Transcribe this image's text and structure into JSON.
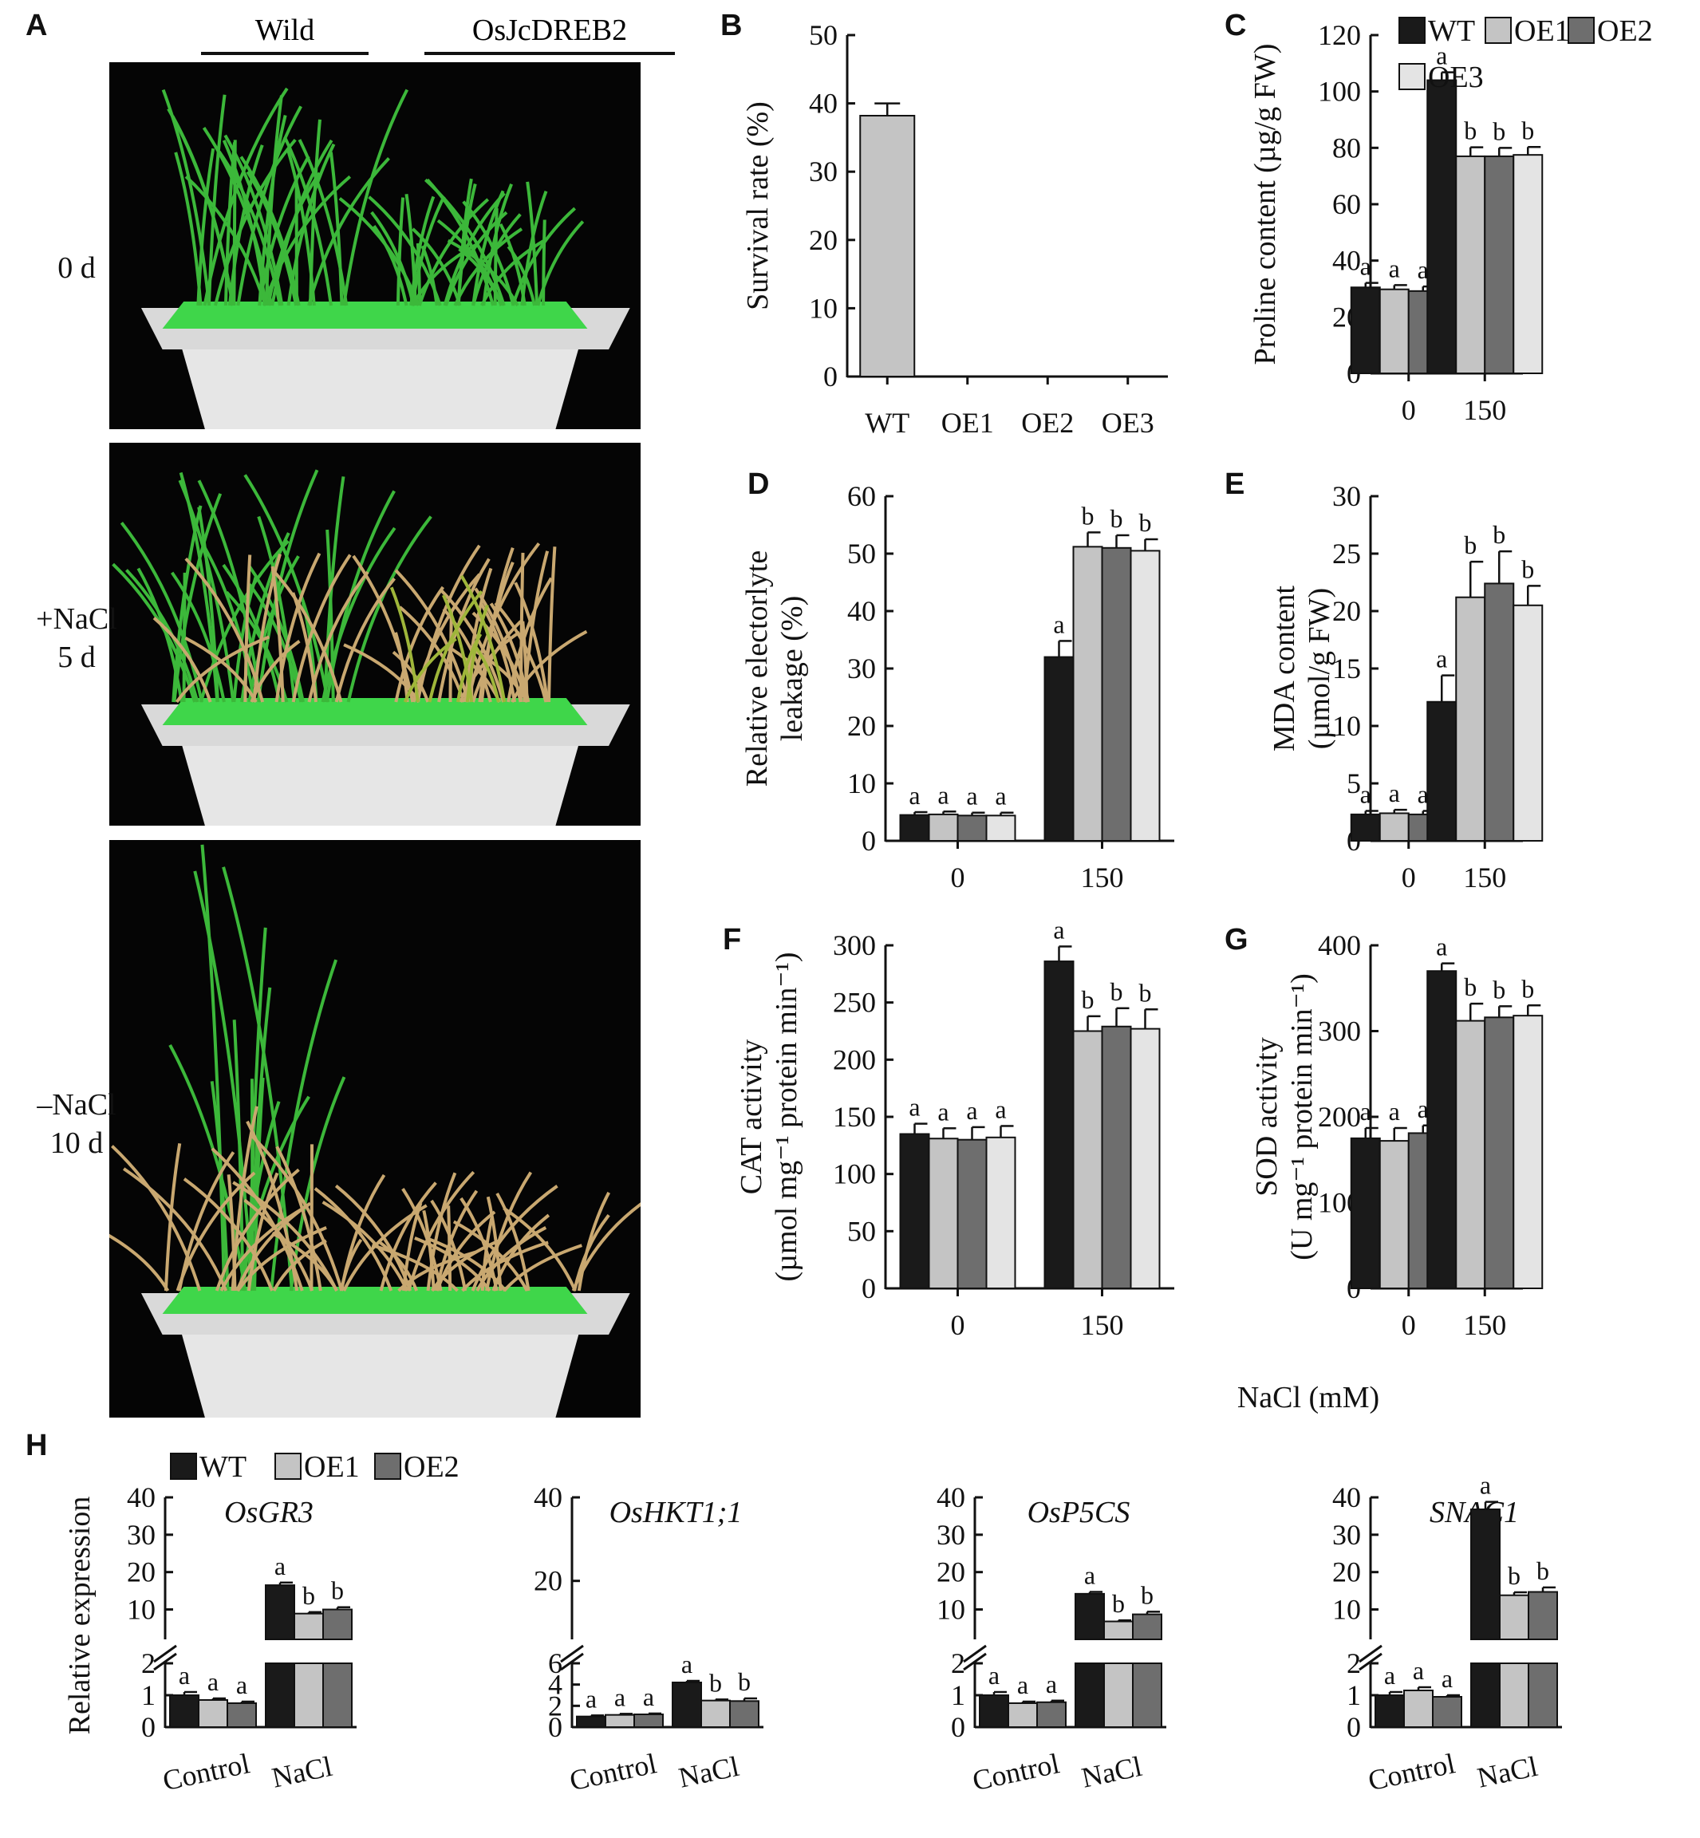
{
  "colors": {
    "WT": "#1a1a1a",
    "OE1": "#c4c4c4",
    "OE2": "#6e6e6e",
    "OE3": "#e4e4e4",
    "survival": "#c4c4c4",
    "pot": "#e6e6e6",
    "tray": "#3fd64a",
    "leaf": "#3cb83a",
    "dry": "#c9a870"
  },
  "panel_A": {
    "label": "A",
    "header_left": "Wild",
    "header_right": "OsJcDREB2",
    "rows": [
      {
        "line1": "0 d",
        "line2": ""
      },
      {
        "line1": "+NaCl",
        "line2": "5 d"
      },
      {
        "line1": "–NaCl",
        "line2": "10 d"
      }
    ]
  },
  "legend_main": [
    "WT",
    "OE1",
    "OE2",
    "OE3"
  ],
  "legend_H": [
    "WT",
    "OE1",
    "OE2"
  ],
  "shared_xlabel": "NaCl (mM)",
  "chart_data": [
    {
      "id": "B",
      "label": "B",
      "type": "bar",
      "categories": [
        "WT",
        "OE1",
        "OE2",
        "OE3"
      ],
      "values": [
        38.2,
        0,
        0,
        0
      ],
      "errors": [
        1.8,
        0,
        0,
        0
      ],
      "ylabel": "Survival rate (%)",
      "ylim": [
        0,
        50
      ],
      "yticks": [
        0,
        10,
        20,
        30,
        40,
        50
      ]
    },
    {
      "id": "C",
      "label": "C",
      "type": "bar",
      "categories": [
        "0",
        "150"
      ],
      "series": [
        {
          "name": "WT",
          "values": [
            30.5,
            104
          ],
          "errors": [
            1.6,
            2.8
          ],
          "letters": [
            "a",
            "a"
          ]
        },
        {
          "name": "OE1",
          "values": [
            29.8,
            77
          ],
          "errors": [
            1.5,
            3.2
          ],
          "letters": [
            "a",
            "b"
          ]
        },
        {
          "name": "OE2",
          "values": [
            29.2,
            77
          ],
          "errors": [
            1.6,
            3.0
          ],
          "letters": [
            "a",
            "b"
          ]
        },
        {
          "name": "OE3",
          "values": [
            29.8,
            77.5
          ],
          "errors": [
            1.4,
            2.8
          ],
          "letters": [
            "a",
            "b"
          ]
        }
      ],
      "ylabel": "Proline content (µg/g FW)",
      "ylim": [
        0,
        120
      ],
      "yticks": [
        0,
        20,
        40,
        60,
        80,
        100,
        120
      ],
      "legend": "top-right"
    },
    {
      "id": "D",
      "label": "D",
      "type": "bar",
      "categories": [
        "0",
        "150"
      ],
      "series": [
        {
          "name": "WT",
          "values": [
            4.5,
            32
          ],
          "errors": [
            0.5,
            2.8
          ],
          "letters": [
            "a",
            "a"
          ]
        },
        {
          "name": "OE1",
          "values": [
            4.6,
            51.2
          ],
          "errors": [
            0.5,
            2.5
          ],
          "letters": [
            "a",
            "b"
          ]
        },
        {
          "name": "OE2",
          "values": [
            4.4,
            51
          ],
          "errors": [
            0.5,
            2.2
          ],
          "letters": [
            "a",
            "b"
          ]
        },
        {
          "name": "OE3",
          "values": [
            4.4,
            50.5
          ],
          "errors": [
            0.5,
            2.0
          ],
          "letters": [
            "a",
            "b"
          ]
        }
      ],
      "ylabel": "Relative electorlyte|leakage (%)",
      "ylim": [
        0,
        60
      ],
      "yticks": [
        0,
        10,
        20,
        30,
        40,
        50,
        60
      ]
    },
    {
      "id": "E",
      "label": "E",
      "type": "bar",
      "categories": [
        "0",
        "150"
      ],
      "series": [
        {
          "name": "WT",
          "values": [
            2.3,
            12.1
          ],
          "errors": [
            0.3,
            2.3
          ],
          "letters": [
            "a",
            "a"
          ]
        },
        {
          "name": "OE1",
          "values": [
            2.4,
            21.2
          ],
          "errors": [
            0.3,
            3.1
          ],
          "letters": [
            "a",
            "b"
          ]
        },
        {
          "name": "OE2",
          "values": [
            2.3,
            22.4
          ],
          "errors": [
            0.3,
            2.8
          ],
          "letters": [
            "a",
            "b"
          ]
        },
        {
          "name": "OE3",
          "values": [
            2.4,
            20.5
          ],
          "errors": [
            0.3,
            1.7
          ],
          "letters": [
            "a",
            "b"
          ]
        }
      ],
      "ylabel": "MDA content|(µmol/g FW)",
      "ylim": [
        0,
        30
      ],
      "yticks": [
        0,
        5,
        10,
        15,
        20,
        25,
        30
      ]
    },
    {
      "id": "F",
      "label": "F",
      "type": "bar",
      "categories": [
        "0",
        "150"
      ],
      "series": [
        {
          "name": "WT",
          "values": [
            135,
            286
          ],
          "errors": [
            9,
            13
          ],
          "letters": [
            "a",
            "a"
          ]
        },
        {
          "name": "OE1",
          "values": [
            131,
            225
          ],
          "errors": [
            9,
            13
          ],
          "letters": [
            "a",
            "b"
          ]
        },
        {
          "name": "OE2",
          "values": [
            130,
            229
          ],
          "errors": [
            11,
            16
          ],
          "letters": [
            "a",
            "b"
          ]
        },
        {
          "name": "OE3",
          "values": [
            132,
            227
          ],
          "errors": [
            10,
            17
          ],
          "letters": [
            "a",
            "b"
          ]
        }
      ],
      "ylabel": "CAT activity|(µmol mg⁻¹ protein min⁻¹)",
      "ylim": [
        0,
        300
      ],
      "yticks": [
        0,
        50,
        100,
        150,
        200,
        250,
        300
      ]
    },
    {
      "id": "G",
      "label": "G",
      "type": "bar",
      "categories": [
        "0",
        "150"
      ],
      "series": [
        {
          "name": "WT",
          "values": [
            175,
            370
          ],
          "errors": [
            12,
            9
          ],
          "letters": [
            "a",
            "a"
          ]
        },
        {
          "name": "OE1",
          "values": [
            172,
            312
          ],
          "errors": [
            15,
            20
          ],
          "letters": [
            "a",
            "b"
          ]
        },
        {
          "name": "OE2",
          "values": [
            181,
            316
          ],
          "errors": [
            9,
            13
          ],
          "letters": [
            "a",
            "b"
          ]
        },
        {
          "name": "OE3",
          "values": [
            174,
            318
          ],
          "errors": [
            12,
            12
          ],
          "letters": [
            "a",
            "b"
          ]
        }
      ],
      "ylabel": "SOD activity|(U mg⁻¹ protein min⁻¹)",
      "ylim": [
        0,
        400
      ],
      "yticks": [
        0,
        100,
        200,
        300,
        400
      ]
    },
    {
      "id": "H1",
      "label": "H",
      "type": "bar",
      "title": "OsGR3",
      "categories": [
        "Control",
        "NaCl"
      ],
      "series": [
        {
          "name": "WT",
          "values": [
            1.0,
            16.5
          ],
          "errors": [
            0.1,
            0.7
          ],
          "letters": [
            "a",
            "a"
          ]
        },
        {
          "name": "OE1",
          "values": [
            0.85,
            8.9
          ],
          "errors": [
            0.05,
            0.4
          ],
          "letters": [
            "a",
            "b"
          ]
        },
        {
          "name": "OE2",
          "values": [
            0.75,
            10.0
          ],
          "errors": [
            0.05,
            0.6
          ],
          "letters": [
            "a",
            "b"
          ]
        }
      ],
      "ylabel": "Relative expression",
      "broken_axis": {
        "lower": [
          0,
          2
        ],
        "upper": [
          2,
          40
        ]
      },
      "yticks_lower": [
        "0",
        "1",
        "2"
      ],
      "yticks_upper": [
        "10",
        "20",
        "30",
        "40"
      ]
    },
    {
      "id": "H2",
      "type": "bar",
      "title": "OsHKT1;1",
      "categories": [
        "Control",
        "NaCl"
      ],
      "series": [
        {
          "name": "WT",
          "values": [
            1.0,
            4.2
          ],
          "errors": [
            0.1,
            0.15
          ],
          "letters": [
            "a",
            "a"
          ]
        },
        {
          "name": "OE1",
          "values": [
            1.15,
            2.5
          ],
          "errors": [
            0.1,
            0.1
          ],
          "letters": [
            "a",
            "b"
          ]
        },
        {
          "name": "OE2",
          "values": [
            1.2,
            2.45
          ],
          "errors": [
            0.08,
            0.25
          ],
          "letters": [
            "a",
            "b"
          ]
        }
      ],
      "broken_axis": {
        "lower": [
          0,
          6
        ],
        "upper": [
          6,
          40
        ]
      },
      "yticks_lower": [
        "0",
        "2",
        "4",
        "6"
      ],
      "yticks_upper": [
        "20",
        "40"
      ]
    },
    {
      "id": "H3",
      "type": "bar",
      "title": "OsP5CS",
      "categories": [
        "Control",
        "NaCl"
      ],
      "series": [
        {
          "name": "WT",
          "values": [
            1.0,
            14.2
          ],
          "errors": [
            0.1,
            0.5
          ],
          "letters": [
            "a",
            "a"
          ]
        },
        {
          "name": "OE1",
          "values": [
            0.75,
            6.8
          ],
          "errors": [
            0.05,
            0.3
          ],
          "letters": [
            "a",
            "b"
          ]
        },
        {
          "name": "OE2",
          "values": [
            0.78,
            8.7
          ],
          "errors": [
            0.05,
            0.7
          ],
          "letters": [
            "a",
            "b"
          ]
        }
      ],
      "broken_axis": {
        "lower": [
          0,
          2
        ],
        "upper": [
          2,
          40
        ]
      },
      "yticks_lower": [
        "0",
        "1",
        "2"
      ],
      "yticks_upper": [
        "10",
        "20",
        "30",
        "40"
      ]
    },
    {
      "id": "H4",
      "type": "bar",
      "title": "SNAC1",
      "categories": [
        "Control",
        "NaCl"
      ],
      "series": [
        {
          "name": "WT",
          "values": [
            1.0,
            36.8
          ],
          "errors": [
            0.1,
            2.0
          ],
          "letters": [
            "a",
            "a"
          ]
        },
        {
          "name": "OE1",
          "values": [
            1.15,
            13.8
          ],
          "errors": [
            0.1,
            0.8
          ],
          "letters": [
            "a",
            "b"
          ]
        },
        {
          "name": "OE2",
          "values": [
            0.95,
            14.7
          ],
          "errors": [
            0.05,
            1.2
          ],
          "letters": [
            "a",
            "b"
          ]
        }
      ],
      "broken_axis": {
        "lower": [
          0,
          2
        ],
        "upper": [
          2,
          40
        ]
      },
      "yticks_lower": [
        "0",
        "1",
        "2"
      ],
      "yticks_upper": [
        "10",
        "20",
        "30",
        "40"
      ]
    }
  ]
}
